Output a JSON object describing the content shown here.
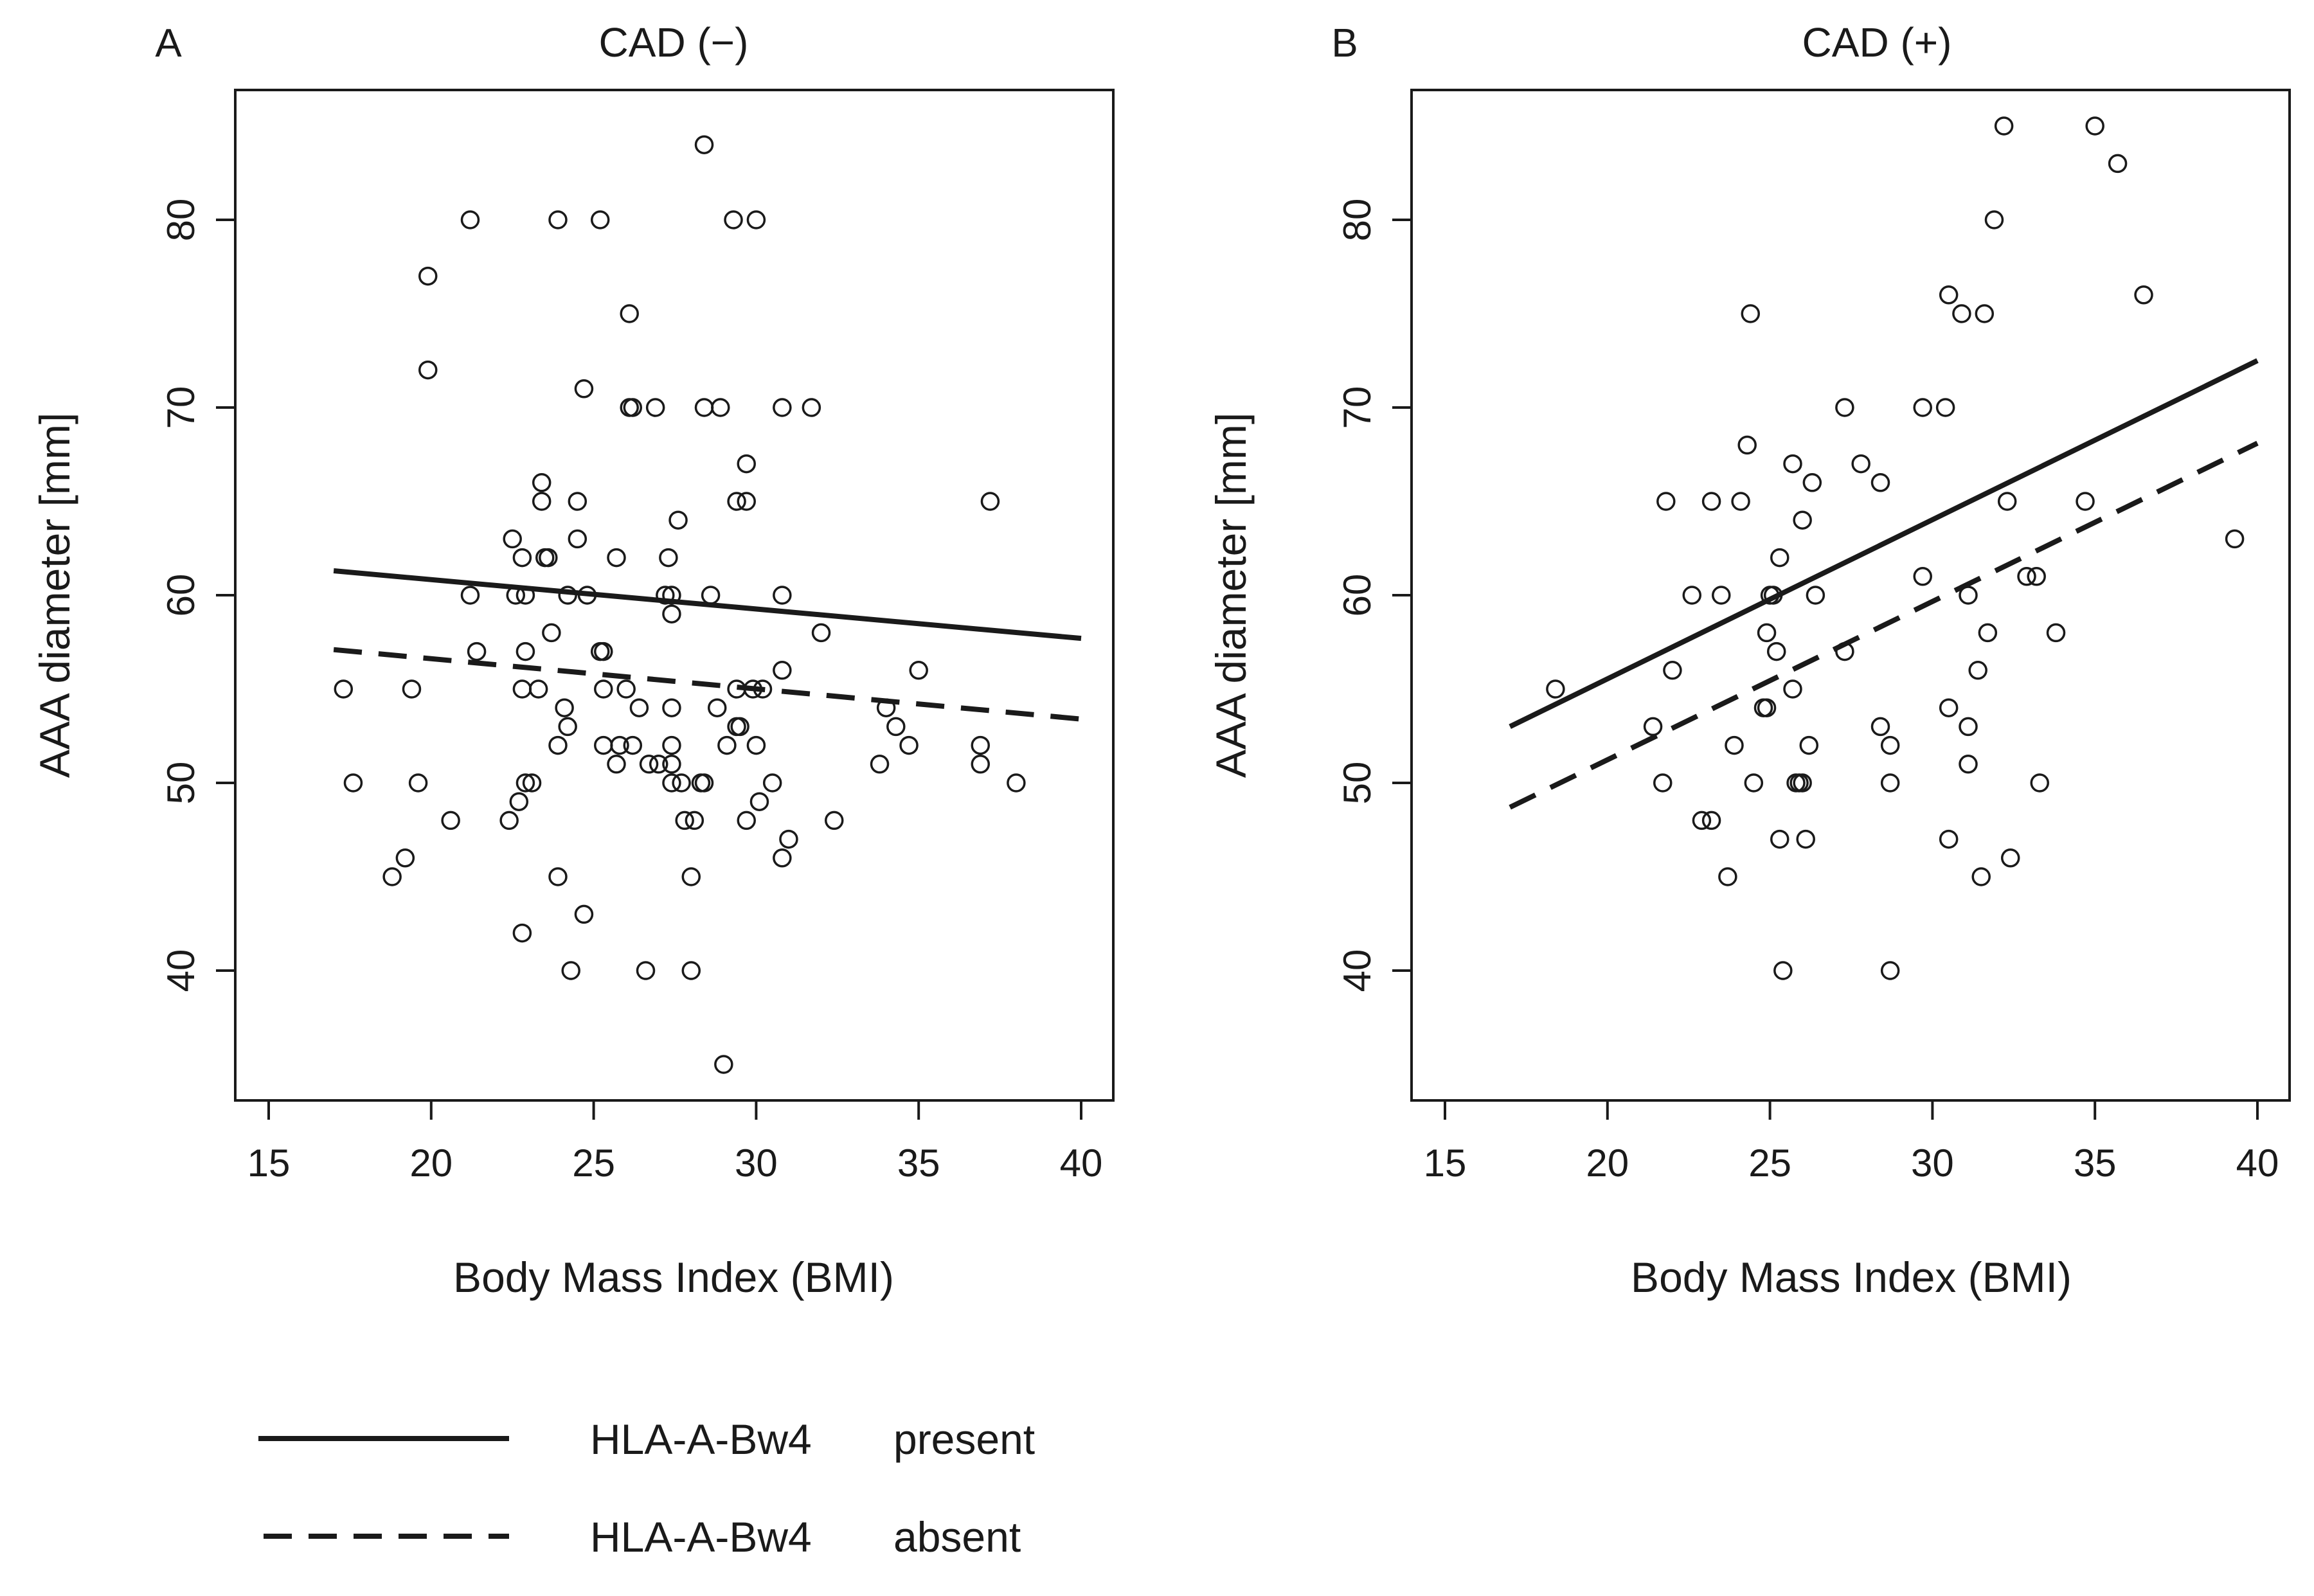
{
  "chart_data": [
    {
      "type": "scatter",
      "panel_label": "A",
      "title": "CAD (−)",
      "xlabel": "Body Mass Index (BMI)",
      "ylabel": "AAA diameter [mm]",
      "xlim": [
        15,
        40
      ],
      "ylim": [
        35,
        85
      ],
      "xticks": [
        15,
        20,
        25,
        30,
        35,
        40
      ],
      "yticks": [
        40,
        50,
        60,
        70,
        80
      ],
      "grid": false,
      "points": [
        [
          17.3,
          55
        ],
        [
          17.6,
          50
        ],
        [
          18.8,
          45
        ],
        [
          19.2,
          46
        ],
        [
          19.4,
          55
        ],
        [
          19.6,
          50
        ],
        [
          19.9,
          77
        ],
        [
          19.9,
          72
        ],
        [
          20.6,
          48
        ],
        [
          21.2,
          80
        ],
        [
          21.2,
          60
        ],
        [
          21.4,
          57
        ],
        [
          22.4,
          48
        ],
        [
          22.5,
          63
        ],
        [
          22.6,
          60
        ],
        [
          22.7,
          49
        ],
        [
          22.8,
          55
        ],
        [
          22.8,
          62
        ],
        [
          22.8,
          42
        ],
        [
          22.9,
          50
        ],
        [
          22.9,
          60
        ],
        [
          22.9,
          57
        ],
        [
          23.1,
          50
        ],
        [
          23.3,
          55
        ],
        [
          23.4,
          66
        ],
        [
          23.4,
          65
        ],
        [
          23.5,
          62
        ],
        [
          23.6,
          62
        ],
        [
          23.7,
          58
        ],
        [
          23.9,
          80
        ],
        [
          23.9,
          52
        ],
        [
          23.9,
          45
        ],
        [
          24.1,
          54
        ],
        [
          24.2,
          53
        ],
        [
          24.2,
          60
        ],
        [
          24.3,
          40
        ],
        [
          24.5,
          65
        ],
        [
          24.5,
          63
        ],
        [
          24.7,
          71
        ],
        [
          24.7,
          43
        ],
        [
          24.8,
          60
        ],
        [
          25.2,
          80
        ],
        [
          25.2,
          57
        ],
        [
          25.3,
          57
        ],
        [
          25.3,
          55
        ],
        [
          25.3,
          52
        ],
        [
          25.7,
          62
        ],
        [
          25.7,
          51
        ],
        [
          25.8,
          52
        ],
        [
          26.0,
          55
        ],
        [
          26.1,
          75
        ],
        [
          26.1,
          70
        ],
        [
          26.2,
          70
        ],
        [
          26.2,
          52
        ],
        [
          26.4,
          54
        ],
        [
          26.6,
          40
        ],
        [
          26.7,
          51
        ],
        [
          26.9,
          70
        ],
        [
          27.0,
          51
        ],
        [
          27.2,
          60
        ],
        [
          27.3,
          62
        ],
        [
          27.4,
          60
        ],
        [
          27.4,
          59
        ],
        [
          27.4,
          54
        ],
        [
          27.4,
          52
        ],
        [
          27.4,
          51
        ],
        [
          27.4,
          50
        ],
        [
          27.6,
          64
        ],
        [
          27.7,
          50
        ],
        [
          27.8,
          48
        ],
        [
          28.0,
          45
        ],
        [
          28.0,
          40
        ],
        [
          28.1,
          48
        ],
        [
          28.3,
          50
        ],
        [
          28.4,
          84
        ],
        [
          28.4,
          70
        ],
        [
          28.4,
          50
        ],
        [
          28.6,
          60
        ],
        [
          28.8,
          54
        ],
        [
          28.9,
          70
        ],
        [
          29.0,
          35
        ],
        [
          29.1,
          52
        ],
        [
          29.3,
          80
        ],
        [
          29.4,
          65
        ],
        [
          29.4,
          55
        ],
        [
          29.4,
          53
        ],
        [
          29.5,
          53
        ],
        [
          29.7,
          67
        ],
        [
          29.7,
          65
        ],
        [
          29.7,
          48
        ],
        [
          29.9,
          55
        ],
        [
          30.0,
          80
        ],
        [
          30.0,
          52
        ],
        [
          30.1,
          49
        ],
        [
          30.2,
          55
        ],
        [
          30.5,
          50
        ],
        [
          30.8,
          70
        ],
        [
          30.8,
          60
        ],
        [
          30.8,
          56
        ],
        [
          30.8,
          46
        ],
        [
          31.0,
          47
        ],
        [
          31.7,
          70
        ],
        [
          32.0,
          58
        ],
        [
          32.4,
          48
        ],
        [
          33.8,
          51
        ],
        [
          34.0,
          54
        ],
        [
          34.3,
          53
        ],
        [
          34.7,
          52
        ],
        [
          35.0,
          56
        ],
        [
          36.9,
          52
        ],
        [
          36.9,
          51
        ],
        [
          37.2,
          65
        ],
        [
          38.0,
          50
        ]
      ],
      "lines": [
        {
          "style": "solid",
          "label": "present",
          "x": [
            17,
            40
          ],
          "y": [
            61.3,
            57.7
          ]
        },
        {
          "style": "dashed",
          "label": "absent",
          "x": [
            17,
            40
          ],
          "y": [
            57.1,
            53.4
          ]
        }
      ]
    },
    {
      "type": "scatter",
      "panel_label": "B",
      "title": "CAD (+)",
      "xlabel": "Body Mass Index (BMI)",
      "ylabel": "AAA diameter [mm]",
      "xlim": [
        15,
        40
      ],
      "ylim": [
        35,
        85
      ],
      "xticks": [
        15,
        20,
        25,
        30,
        35,
        40
      ],
      "yticks": [
        40,
        50,
        60,
        70,
        80
      ],
      "grid": false,
      "points": [
        [
          18.4,
          55
        ],
        [
          21.4,
          53
        ],
        [
          21.7,
          50
        ],
        [
          21.8,
          65
        ],
        [
          22.0,
          56
        ],
        [
          22.6,
          60
        ],
        [
          22.9,
          48
        ],
        [
          23.2,
          48
        ],
        [
          23.2,
          65
        ],
        [
          23.5,
          60
        ],
        [
          23.7,
          45
        ],
        [
          23.9,
          52
        ],
        [
          24.1,
          65
        ],
        [
          24.3,
          68
        ],
        [
          24.4,
          75
        ],
        [
          24.5,
          50
        ],
        [
          24.8,
          54
        ],
        [
          24.9,
          54
        ],
        [
          24.9,
          58
        ],
        [
          25.0,
          60
        ],
        [
          25.1,
          60
        ],
        [
          25.2,
          57
        ],
        [
          25.3,
          62
        ],
        [
          25.3,
          47
        ],
        [
          25.4,
          40
        ],
        [
          25.7,
          67
        ],
        [
          25.7,
          55
        ],
        [
          25.8,
          50
        ],
        [
          25.9,
          50
        ],
        [
          26.0,
          64
        ],
        [
          26.0,
          50
        ],
        [
          26.1,
          47
        ],
        [
          26.2,
          52
        ],
        [
          26.3,
          66
        ],
        [
          26.4,
          60
        ],
        [
          27.3,
          70
        ],
        [
          27.3,
          57
        ],
        [
          27.8,
          67
        ],
        [
          28.4,
          66
        ],
        [
          28.4,
          53
        ],
        [
          28.7,
          52
        ],
        [
          28.7,
          50
        ],
        [
          28.7,
          40
        ],
        [
          29.7,
          70
        ],
        [
          29.7,
          61
        ],
        [
          30.4,
          70
        ],
        [
          30.5,
          76
        ],
        [
          30.5,
          54
        ],
        [
          30.5,
          47
        ],
        [
          30.9,
          75
        ],
        [
          31.1,
          60
        ],
        [
          31.1,
          53
        ],
        [
          31.1,
          51
        ],
        [
          31.4,
          56
        ],
        [
          31.5,
          45
        ],
        [
          31.6,
          75
        ],
        [
          31.7,
          58
        ],
        [
          31.9,
          80
        ],
        [
          32.2,
          85
        ],
        [
          32.3,
          65
        ],
        [
          32.4,
          46
        ],
        [
          32.9,
          61
        ],
        [
          33.2,
          61
        ],
        [
          33.3,
          50
        ],
        [
          33.8,
          58
        ],
        [
          34.7,
          65
        ],
        [
          35.0,
          85
        ],
        [
          35.7,
          83
        ],
        [
          36.5,
          76
        ],
        [
          39.3,
          63
        ]
      ],
      "lines": [
        {
          "style": "solid",
          "label": "present",
          "x": [
            17,
            40
          ],
          "y": [
            53.0,
            72.5
          ]
        },
        {
          "style": "dashed",
          "label": "absent",
          "x": [
            17,
            40
          ],
          "y": [
            48.7,
            68.1
          ]
        }
      ]
    }
  ],
  "legend": {
    "placement": "bottom-left",
    "entries": [
      {
        "style": "solid",
        "name": "HLA-A-Bw4",
        "state": "present"
      },
      {
        "style": "dashed",
        "name": "HLA-A-Bw4",
        "state": "absent"
      }
    ]
  }
}
